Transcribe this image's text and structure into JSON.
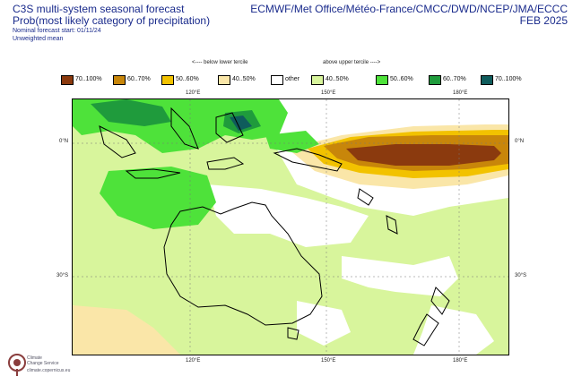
{
  "header": {
    "title_line1": "C3S multi-system seasonal forecast",
    "title_line2": "Prob(most likely category of precipitation)",
    "subtitle_start": "Nominal forecast start: 01/11/24",
    "subtitle_mean": "Unweighted mean",
    "centres": "ECMWF/Met Office/Météo-France/CMCC/DWD/NCEP/JMA/ECCC",
    "valid": "FEB 2025"
  },
  "legend": {
    "below_label": "<---- below lower tercile",
    "above_label": "above upper tercile ---->",
    "items": [
      {
        "label": "70..100%",
        "color": "#8b3a0e"
      },
      {
        "label": "60..70%",
        "color": "#c8860a"
      },
      {
        "label": "50..60%",
        "color": "#f2c200"
      },
      {
        "label": "40..50%",
        "color": "#fae6a8"
      },
      {
        "label": "other",
        "color": "#ffffff"
      },
      {
        "label": "40..50%",
        "color": "#d8f59c"
      },
      {
        "label": "50..60%",
        "color": "#4ee23a"
      },
      {
        "label": "60..70%",
        "color": "#1f9b3c"
      },
      {
        "label": "70..100%",
        "color": "#0f5c5c"
      }
    ]
  },
  "axes": {
    "lon_top": [
      "120°E",
      "150°E",
      "180°E"
    ],
    "lon_bottom": [
      "120°E",
      "150°E",
      "180°E"
    ],
    "lat_left": [
      "0°N",
      "30°S"
    ],
    "lat_right": [
      "0°N",
      "30°S"
    ]
  },
  "logo": {
    "line1": "Climate",
    "line2": "Change Service",
    "url": "climate.copernicus.eu"
  }
}
